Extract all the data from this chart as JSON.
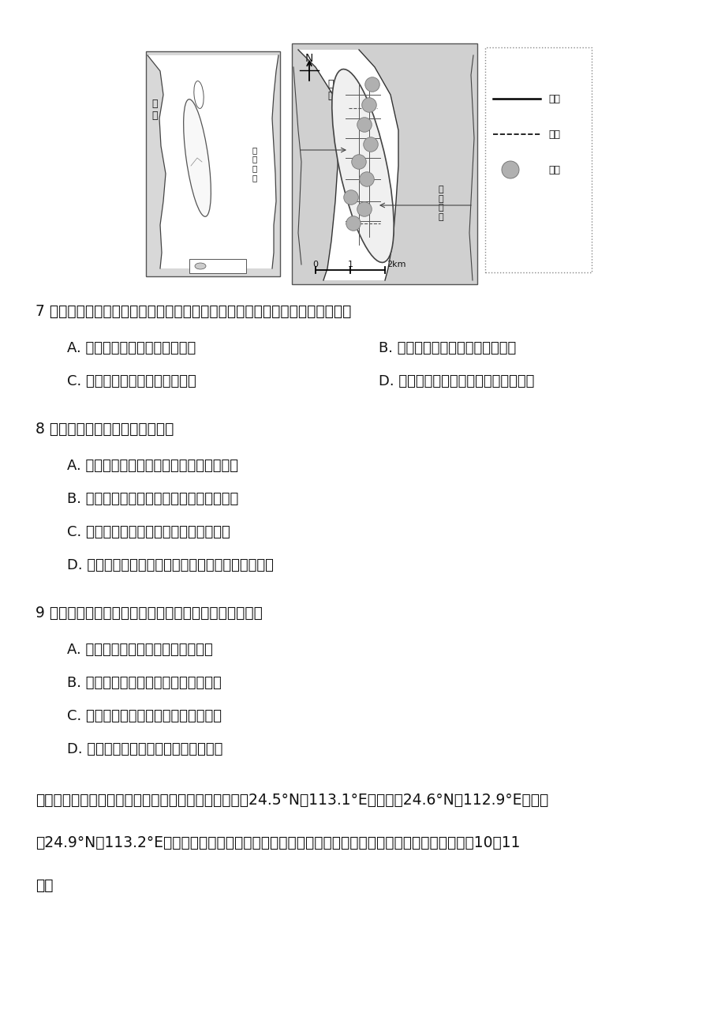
{
  "background_color": "#ffffff",
  "page_width": 9.2,
  "page_height": 13.02,
  "text_content": {
    "q7_intro": "7 江心洲是河水周期性涨落过程中逐渐形成的，不同部位的沉积砂砾颗粒特征是",
    "q7_a": "A. 迎水侧的洲头沉积物颗粒较粗",
    "q7_b": "B. 东西侧翼的沉积物多以淤泥为主",
    "q7_c": "C. 洲尾部沉积物的粗细分选性好",
    "q7_d": "D. 从洲面垂直向下沉积物颗粒逐渐加粗",
    "q8_intro": "8 江心洲近年来发生的变化可能是",
    "q8_a": "A. 长江三峡蓄水后江心洲面积有扩大的趋势",
    "q8_b": "B. 南水北调东线实施调水后江心洲面积缩小",
    "q8_c": "C. 大量农业开垦导致江心洲内部湿地锐减",
    "q8_d": "D. 造船、沙场等产业的退出使江心洲的发展趋于衰落",
    "q9_intro": "9 关于江心洲滨江带绿道的规划建设，下列说法正确的是",
    "q9_a": "A. 滨江堤岸需要生态化、景观化改造",
    "q9_b": "B. 码头、船坞等工业遗址需要彻底清理",
    "q9_c": "C. 东侧要与市区隔离开避免市区的干扰",
    "q9_d": "D. 西侧破碎的湿地应保持其相互独立性",
    "q10_intro": "林线指山地森林分布的最高界线。下图是将广东省甲（24.5°N，113.1°E）、乙（24.6°N，112.9°E）、丙",
    "q10_intro2": "（24.9°N，113.2°E）三地林线高度与坡向分级图叠加，得到的林线随坡向的变化示意图，读图完成10～11",
    "q10_end": "题。"
  }
}
